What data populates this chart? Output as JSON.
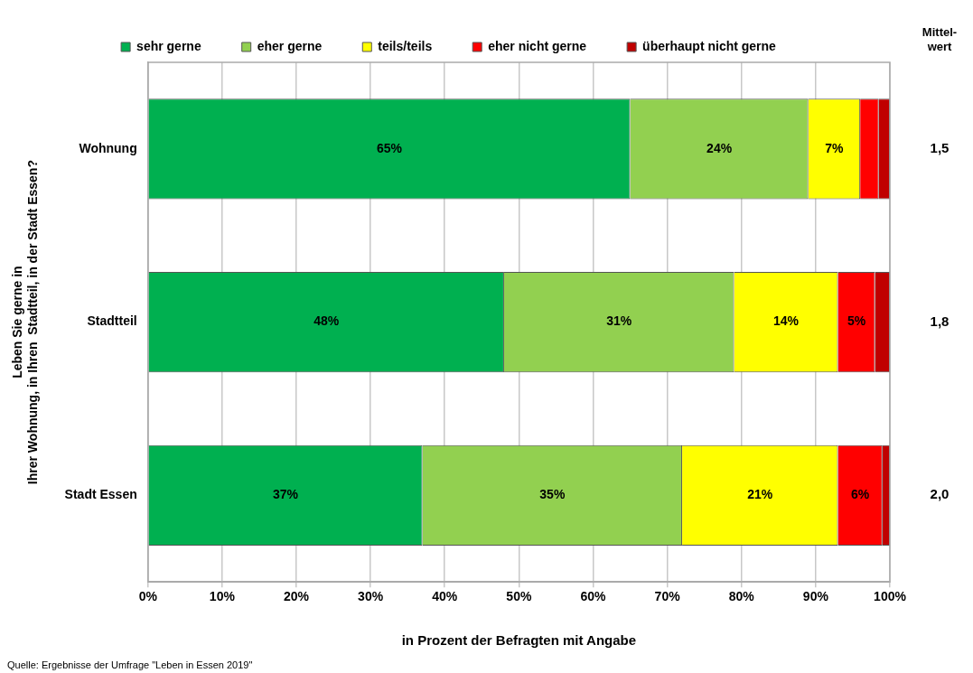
{
  "chart_data": {
    "type": "bar",
    "orientation": "horizontal",
    "stacked": true,
    "categories": [
      "Wohnung",
      "Stadtteil",
      "Stadt Essen"
    ],
    "series": [
      {
        "name": "sehr gerne",
        "color": "#00b050",
        "values": [
          65,
          48,
          37
        ],
        "value_labels": [
          "65%",
          "48%",
          "37%"
        ]
      },
      {
        "name": "eher gerne",
        "color": "#92d050",
        "values": [
          24,
          31,
          35
        ],
        "value_labels": [
          "24%",
          "31%",
          "35%"
        ]
      },
      {
        "name": "teils/teils",
        "color": "#ffff00",
        "values": [
          7,
          14,
          21
        ],
        "value_labels": [
          "7%",
          "14%",
          "21%"
        ]
      },
      {
        "name": "eher nicht gerne",
        "color": "#ff0000",
        "values": [
          2.5,
          5,
          6
        ],
        "value_labels": [
          null,
          "5%",
          "6%"
        ]
      },
      {
        "name": "überhaupt nicht gerne",
        "color": "#c00000",
        "values": [
          1.5,
          2,
          1
        ],
        "value_labels": [
          null,
          null,
          null
        ]
      }
    ],
    "xlim": [
      0,
      100
    ],
    "xticks": [
      {
        "value": 0,
        "label": "0%"
      },
      {
        "value": 10,
        "label": "10%"
      },
      {
        "value": 20,
        "label": "20%"
      },
      {
        "value": 30,
        "label": "30%"
      },
      {
        "value": 40,
        "label": "40%"
      },
      {
        "value": 50,
        "label": "50%"
      },
      {
        "value": 60,
        "label": "60%"
      },
      {
        "value": 70,
        "label": "70%"
      },
      {
        "value": 80,
        "label": "80%"
      },
      {
        "value": 90,
        "label": "90%"
      },
      {
        "value": 100,
        "label": "100%"
      }
    ],
    "xlabel": "in Prozent der Befragten mit Angabe",
    "ylabel": "Leben Sie gerne in\nIhrer Wohnung, in Ihren  Stadtteil, in der Stadt Essen?",
    "grid": "x",
    "legend": "top",
    "annotations": [
      "Mittel-\nwert",
      "1,5",
      "1,8",
      "2,0",
      "Quelle: Ergebnisse der Umfrage \"Leben in Essen 2019\""
    ]
  }
}
